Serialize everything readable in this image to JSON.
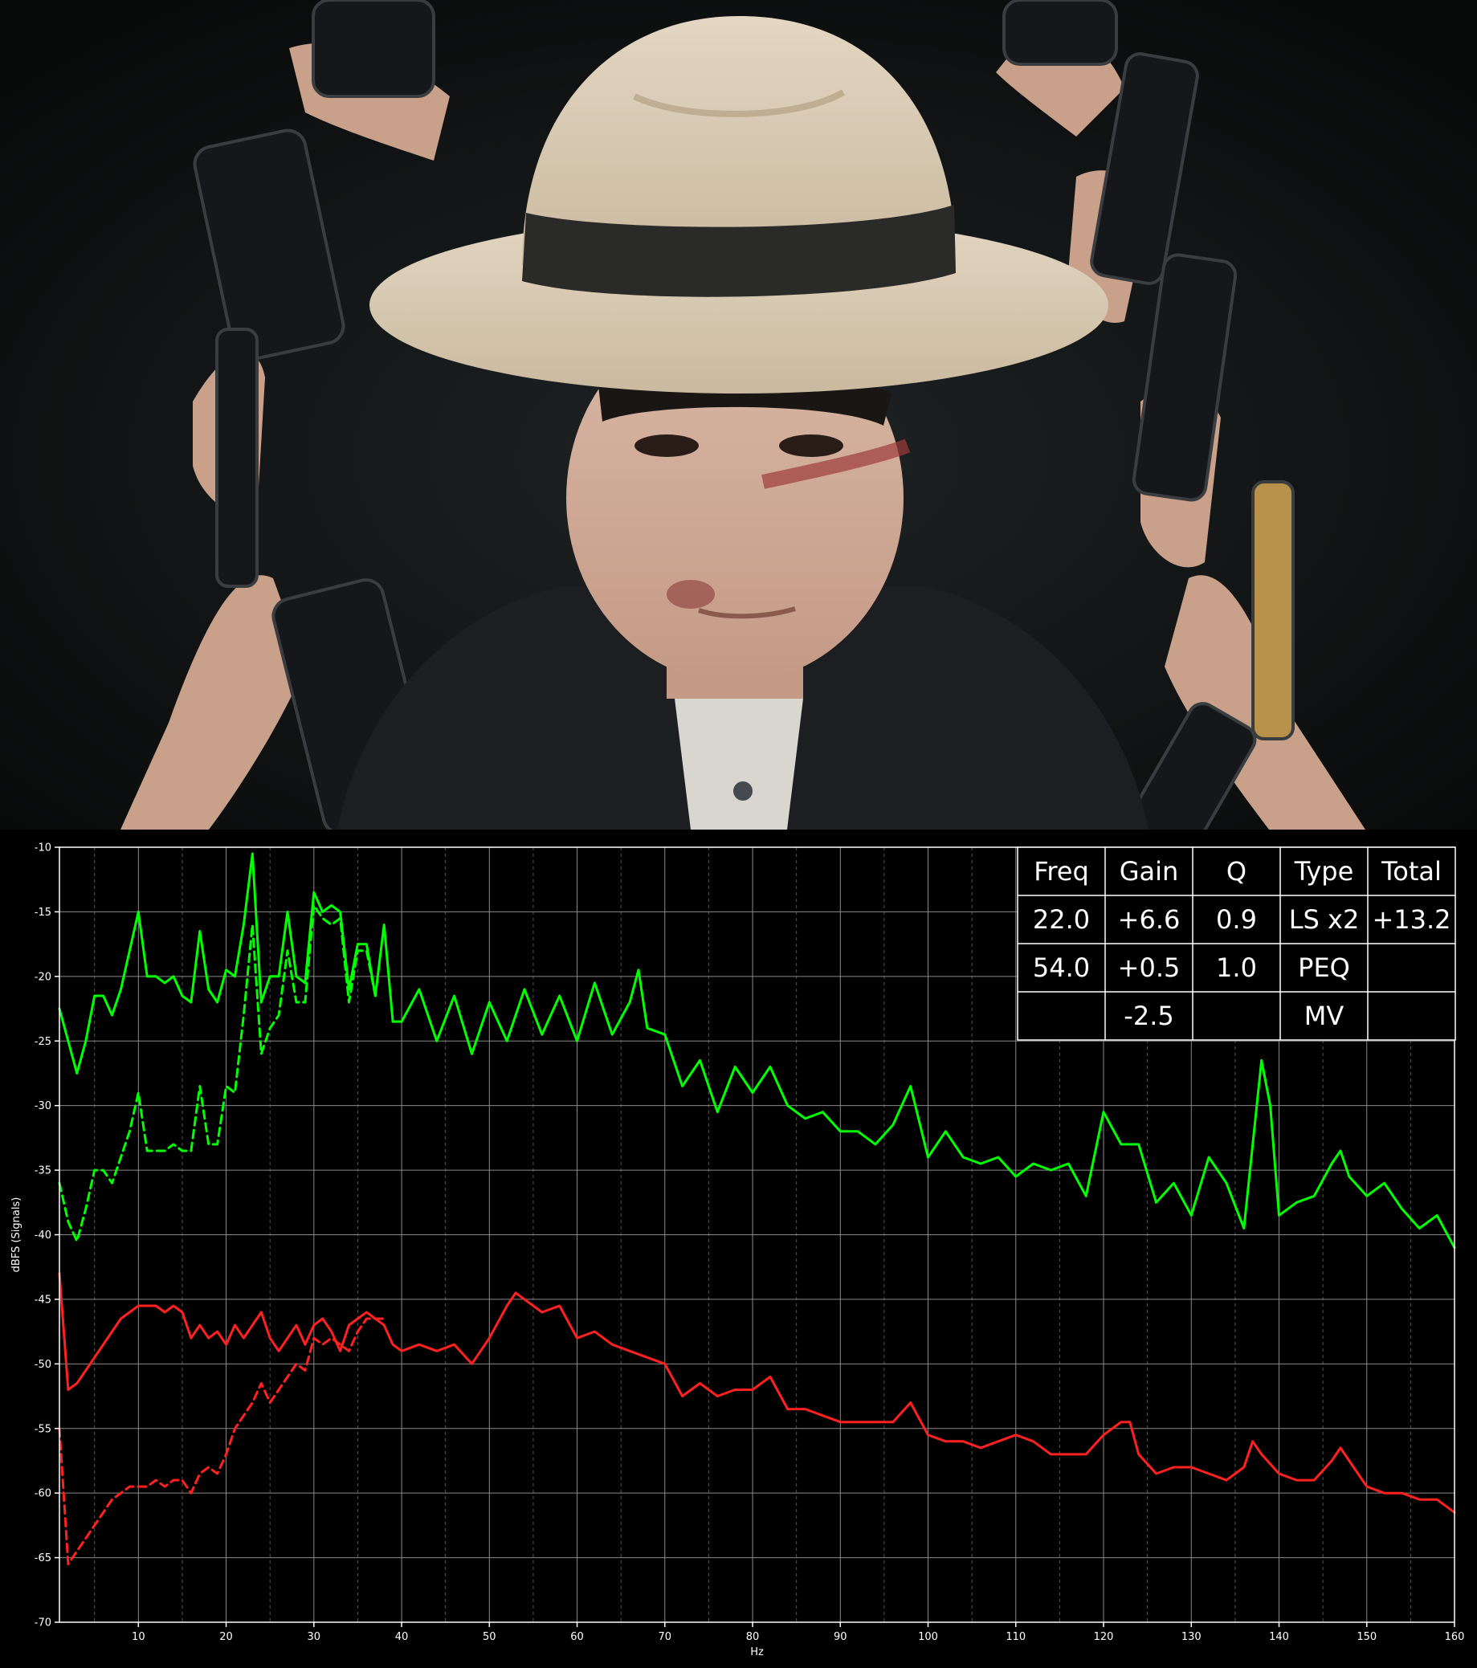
{
  "poster": {
    "description_icon": "man-in-hat-surrounded-by-phones-photo"
  },
  "chart_data": {
    "type": "line",
    "xlabel": "Hz",
    "ylabel": "dBFS (Signals)",
    "xlim": [
      1,
      160
    ],
    "ylim": [
      -70,
      -10
    ],
    "xticks": [
      10,
      20,
      30,
      40,
      50,
      60,
      70,
      80,
      90,
      100,
      110,
      120,
      130,
      140,
      150,
      160
    ],
    "yticks": [
      -10,
      -15,
      -20,
      -25,
      -30,
      -35,
      -40,
      -45,
      -50,
      -55,
      -60,
      -65,
      -70
    ],
    "grid": true,
    "series": [
      {
        "style": "solid",
        "color": "#00ff00",
        "x": [
          1,
          2,
          3,
          4,
          5,
          6,
          7,
          8,
          9,
          10,
          11,
          12,
          13,
          14,
          15,
          16,
          17,
          18,
          19,
          20,
          21,
          22,
          23,
          24,
          25,
          26,
          27,
          28,
          29,
          30,
          31,
          32,
          33,
          34,
          35,
          36,
          37,
          38,
          39,
          40,
          42,
          44,
          46,
          48,
          50,
          52,
          54,
          56,
          58,
          60,
          62,
          64,
          66,
          67,
          68,
          70,
          72,
          74,
          76,
          78,
          80,
          82,
          84,
          86,
          88,
          90,
          92,
          94,
          96,
          98,
          100,
          102,
          104,
          106,
          108,
          110,
          112,
          114,
          116,
          118,
          120,
          122,
          124,
          126,
          128,
          130,
          132,
          134,
          136,
          138,
          139,
          140,
          142,
          144,
          146,
          147,
          148,
          150,
          152,
          154,
          156,
          158,
          160
        ],
        "y": [
          -22.5,
          -25,
          -27.5,
          -25,
          -21.5,
          -21.5,
          -23,
          -21,
          -18,
          -15,
          -20,
          -20,
          -20.5,
          -20,
          -21.5,
          -22,
          -16.5,
          -21,
          -22,
          -19.5,
          -20,
          -16,
          -10.5,
          -22,
          -20,
          -20,
          -15,
          -20,
          -20.5,
          -13.5,
          -15,
          -14.5,
          -15,
          -21,
          -17.5,
          -17.5,
          -21.5,
          -16,
          -23.5,
          -23.5,
          -21,
          -25,
          -21.5,
          -26,
          -22,
          -25,
          -21,
          -24.5,
          -21.5,
          -25,
          -20.5,
          -24.5,
          -22,
          -19.5,
          -24,
          -24.5,
          -28.5,
          -26.5,
          -30.5,
          -27,
          -29,
          -27,
          -30,
          -31,
          -30.5,
          -32,
          -32,
          -33,
          -31.5,
          -28.5,
          -34,
          -32,
          -34,
          -34.5,
          -34,
          -35.5,
          -34.5,
          -35,
          -34.5,
          -37,
          -30.5,
          -33,
          -33,
          -37.5,
          -36,
          -38.5,
          -34,
          -36,
          -39.5,
          -26.5,
          -30,
          -38.5,
          -37.5,
          -37,
          -34.5,
          -33.5,
          -35.5,
          -37,
          -36,
          -38,
          -39.5,
          -38.5,
          -41
        ]
      },
      {
        "style": "dashed",
        "color": "#00ff00",
        "x": [
          1,
          2,
          3,
          4,
          5,
          6,
          7,
          8,
          9,
          10,
          11,
          12,
          13,
          14,
          15,
          16,
          17,
          18,
          19,
          20,
          21,
          22,
          23,
          24,
          25,
          26,
          27,
          28,
          29,
          30,
          31,
          32,
          33,
          34,
          35,
          36,
          37
        ],
        "y": [
          -36,
          -39,
          -40.5,
          -38,
          -35,
          -35,
          -36,
          -34,
          -32,
          -29,
          -33.5,
          -33.5,
          -33.5,
          -33,
          -33.5,
          -33.5,
          -28.5,
          -33,
          -33,
          -28.5,
          -29,
          -23,
          -16,
          -26,
          -24,
          -23,
          -18,
          -22,
          -22,
          -14.5,
          -15.5,
          -16,
          -15.5,
          -22,
          -18,
          -18,
          -21.5
        ]
      },
      {
        "style": "solid",
        "color": "#ff2020",
        "x": [
          1,
          2,
          3,
          4,
          5,
          6,
          7,
          8,
          9,
          10,
          11,
          12,
          13,
          14,
          15,
          16,
          17,
          18,
          19,
          20,
          21,
          22,
          23,
          24,
          25,
          26,
          27,
          28,
          29,
          30,
          31,
          32,
          33,
          34,
          35,
          36,
          37,
          38,
          39,
          40,
          42,
          44,
          46,
          48,
          50,
          52,
          53,
          54,
          56,
          58,
          60,
          62,
          64,
          66,
          68,
          70,
          72,
          74,
          76,
          78,
          80,
          82,
          84,
          86,
          88,
          90,
          92,
          94,
          96,
          98,
          100,
          102,
          104,
          106,
          108,
          110,
          112,
          114,
          116,
          118,
          120,
          122,
          123,
          124,
          126,
          128,
          130,
          132,
          134,
          136,
          137,
          138,
          140,
          142,
          144,
          146,
          147,
          148,
          150,
          152,
          154,
          156,
          158,
          160
        ],
        "y": [
          -43,
          -52,
          -51.5,
          -50.5,
          -49.5,
          -48.5,
          -47.5,
          -46.5,
          -46,
          -45.5,
          -45.5,
          -45.5,
          -46,
          -45.5,
          -46,
          -48,
          -47,
          -48,
          -47.5,
          -48.5,
          -47,
          -48,
          -47,
          -46,
          -48,
          -49,
          -48,
          -47,
          -48.5,
          -47,
          -46.5,
          -47.5,
          -49,
          -47,
          -46.5,
          -46,
          -46.5,
          -47,
          -48.5,
          -49,
          -48.5,
          -49,
          -48.5,
          -50,
          -48,
          -45.5,
          -44.5,
          -45,
          -46,
          -45.5,
          -48,
          -47.5,
          -48.5,
          -49,
          -49.5,
          -50,
          -52.5,
          -51.5,
          -52.5,
          -52,
          -52,
          -51,
          -53.5,
          -53.5,
          -54,
          -54.5,
          -54.5,
          -54.5,
          -54.5,
          -53,
          -55.5,
          -56,
          -56,
          -56.5,
          -56,
          -55.5,
          -56,
          -57,
          -57,
          -57,
          -55.5,
          -54.5,
          -54.5,
          -57,
          -58.5,
          -58,
          -58,
          -58.5,
          -59,
          -58,
          -56,
          -57,
          -58.5,
          -59,
          -59,
          -57.5,
          -56.5,
          -57.5,
          -59.5,
          -60,
          -60,
          -60.5,
          -60.5,
          -61.5
        ]
      },
      {
        "style": "dashed",
        "color": "#ff2020",
        "x": [
          1,
          2,
          3,
          4,
          5,
          6,
          7,
          8,
          9,
          10,
          11,
          12,
          13,
          14,
          15,
          16,
          17,
          18,
          19,
          20,
          21,
          22,
          23,
          24,
          25,
          26,
          27,
          28,
          29,
          30,
          31,
          32,
          33,
          34,
          35,
          36,
          37,
          38
        ],
        "y": [
          -55,
          -65.5,
          -64.5,
          -63.5,
          -62.5,
          -61.5,
          -60.5,
          -60,
          -59.5,
          -59.5,
          -59.5,
          -59,
          -59.5,
          -59,
          -59,
          -60,
          -58.5,
          -58,
          -58.5,
          -57,
          -55,
          -54,
          -53,
          -51.5,
          -53,
          -52,
          -51,
          -50,
          -50.5,
          -48,
          -48.5,
          -48,
          -48.5,
          -49,
          -47.5,
          -46.5,
          -46.5,
          -46.5
        ]
      }
    ],
    "eq_table": {
      "headers": [
        "Freq",
        "Gain",
        "Q",
        "Type",
        "Total"
      ],
      "rows": [
        [
          "22.0",
          "+6.6",
          "0.9",
          "LS x2",
          "+13.2"
        ],
        [
          "54.0",
          "+0.5",
          "1.0",
          "PEQ",
          ""
        ],
        [
          "",
          "-2.5",
          "",
          "MV",
          ""
        ]
      ]
    }
  }
}
